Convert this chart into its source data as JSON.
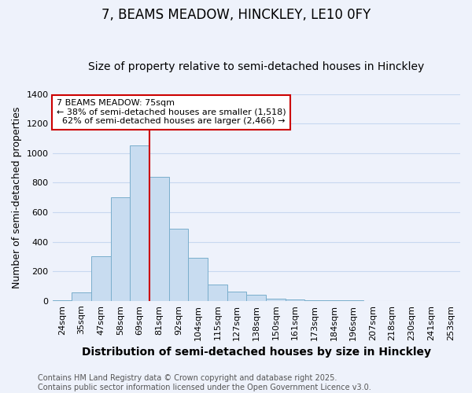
{
  "title": "7, BEAMS MEADOW, HINCKLEY, LE10 0FY",
  "subtitle": "Size of property relative to semi-detached houses in Hinckley",
  "xlabel": "Distribution of semi-detached houses by size in Hinckley",
  "ylabel": "Number of semi-detached properties",
  "categories": [
    "24sqm",
    "35sqm",
    "47sqm",
    "58sqm",
    "69sqm",
    "81sqm",
    "92sqm",
    "104sqm",
    "115sqm",
    "127sqm",
    "138sqm",
    "150sqm",
    "161sqm",
    "173sqm",
    "184sqm",
    "196sqm",
    "207sqm",
    "218sqm",
    "230sqm",
    "241sqm",
    "253sqm"
  ],
  "values": [
    5,
    60,
    300,
    700,
    1050,
    840,
    490,
    290,
    110,
    65,
    40,
    15,
    8,
    2,
    5,
    2,
    0,
    0,
    0,
    0,
    0
  ],
  "bar_color": "#c8dcf0",
  "bar_edgecolor": "#7aaecc",
  "property_label": "7 BEAMS MEADOW: 75sqm",
  "pct_smaller": 38,
  "pct_larger": 62,
  "count_smaller": 1518,
  "count_larger": 2466,
  "vline_x_index": 5,
  "vline_color": "#cc0000",
  "annotation_box_color": "#ffffff",
  "annotation_box_edgecolor": "#cc0000",
  "ylim": [
    0,
    1400
  ],
  "yticks": [
    0,
    200,
    400,
    600,
    800,
    1000,
    1200,
    1400
  ],
  "footer": "Contains HM Land Registry data © Crown copyright and database right 2025.\nContains public sector information licensed under the Open Government Licence v3.0.",
  "background_color": "#eef2fb",
  "grid_color": "#c8d8f0",
  "title_fontsize": 12,
  "subtitle_fontsize": 10,
  "xlabel_fontsize": 10,
  "ylabel_fontsize": 9,
  "tick_fontsize": 8,
  "footer_fontsize": 7,
  "ann_fontsize": 8
}
